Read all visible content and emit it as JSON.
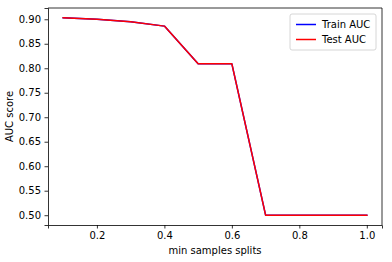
{
  "chart_data": {
    "type": "line",
    "x_label": "min samples splits",
    "y_label": "AUC score",
    "x": [
      0.1,
      0.2,
      0.3,
      0.4,
      0.5,
      0.6,
      0.7,
      0.8,
      0.9,
      1.0
    ],
    "series": [
      {
        "name": "Train AUC",
        "color": "blue",
        "values": [
          0.903,
          0.9,
          0.895,
          0.886,
          0.809,
          0.809,
          0.5,
          0.5,
          0.5,
          0.5
        ]
      },
      {
        "name": "Test AUC",
        "color": "red",
        "values": [
          0.903,
          0.9,
          0.895,
          0.886,
          0.809,
          0.809,
          0.5,
          0.5,
          0.5,
          0.5
        ]
      }
    ],
    "xlim": [
      0.055,
      1.045
    ],
    "xticks": [
      0.2,
      0.4,
      0.6,
      0.8,
      {
        "value": 1,
        "label": "1.0"
      }
    ],
    "ylim": [
      0.48,
      0.923
    ],
    "yticks": [
      {
        "value": 0.5,
        "label": "0.50"
      },
      0.55,
      {
        "value": 0.6,
        "label": "0.60"
      },
      0.65,
      {
        "value": 0.7,
        "label": "0.70"
      },
      0.75,
      {
        "value": 0.8,
        "label": "0.80"
      },
      0.85,
      {
        "value": 0.9,
        "label": "0.90"
      }
    ],
    "grid": false,
    "legend": "upper right"
  }
}
